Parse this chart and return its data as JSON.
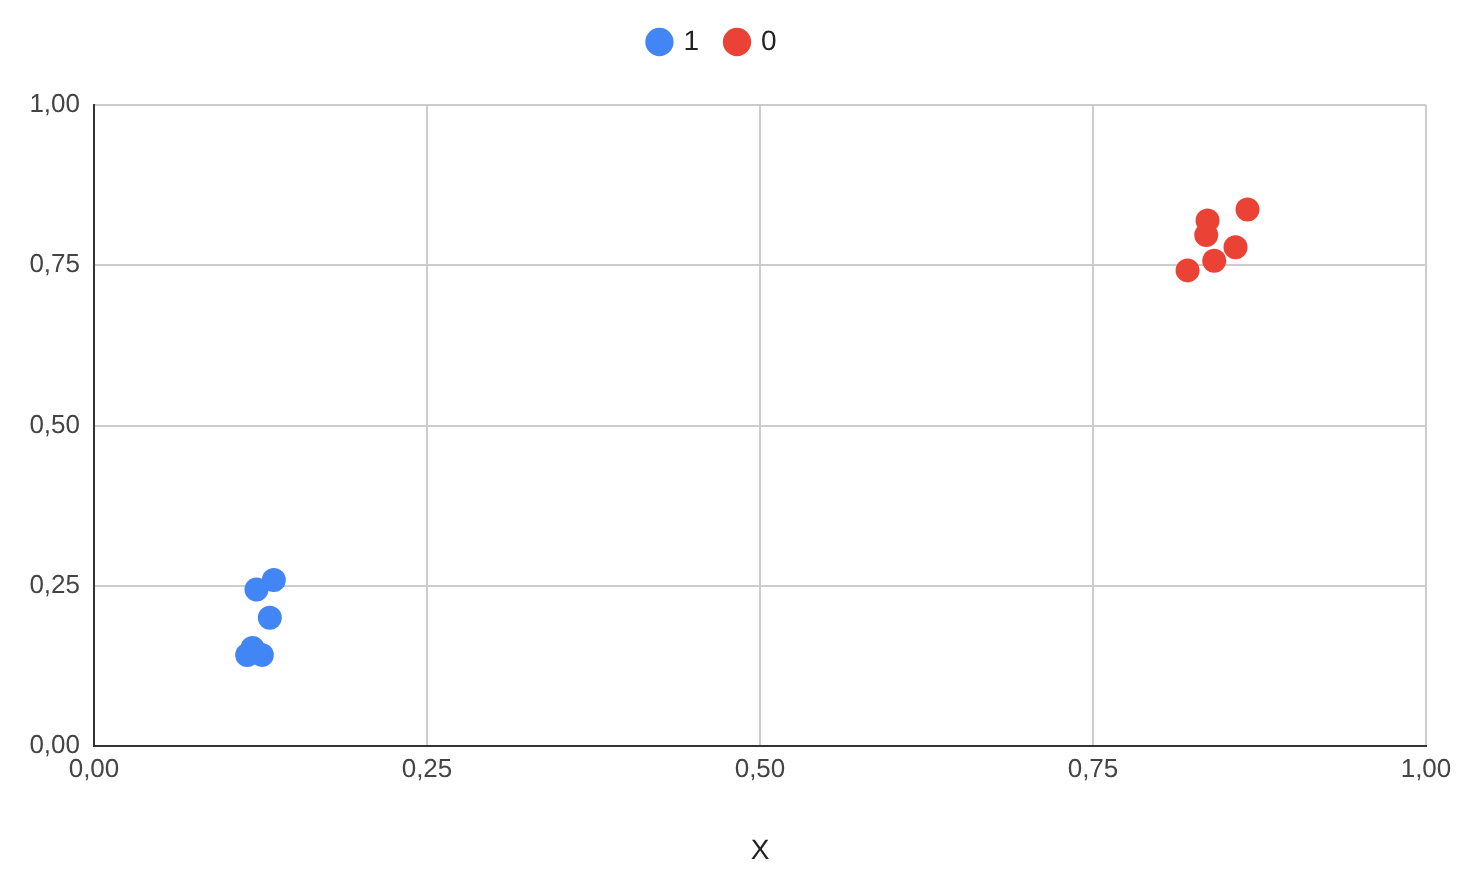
{
  "chart_data": {
    "type": "scatter",
    "xlabel": "X",
    "series": [
      {
        "name": "1",
        "color": "#4285f4",
        "x": [
          0.135,
          0.122,
          0.132,
          0.119,
          0.115,
          0.126
        ],
        "values": [
          0.259,
          0.244,
          0.2,
          0.153,
          0.142,
          0.142
        ]
      },
      {
        "name": "0",
        "color": "#ea4335",
        "x": [
          0.866,
          0.836,
          0.835,
          0.857,
          0.841,
          0.821
        ],
        "values": [
          0.837,
          0.82,
          0.797,
          0.778,
          0.757,
          0.742
        ]
      }
    ],
    "xlim": [
      0,
      1
    ],
    "ylim": [
      0,
      1
    ],
    "xticks": [
      {
        "value": 0,
        "label": "0,00"
      },
      {
        "value": 0.25,
        "label": "0,25"
      },
      {
        "value": 0.5,
        "label": "0,50"
      },
      {
        "value": 0.75,
        "label": "0,75"
      },
      {
        "value": 1,
        "label": "1,00"
      }
    ],
    "yticks": [
      {
        "value": 0,
        "label": "0,00"
      },
      {
        "value": 0.25,
        "label": "0,25"
      },
      {
        "value": 0.5,
        "label": "0,50"
      },
      {
        "value": 0.75,
        "label": "0,75"
      },
      {
        "value": 1,
        "label": "1,00"
      }
    ],
    "grid": true,
    "legend": "top",
    "marker": "circle"
  }
}
